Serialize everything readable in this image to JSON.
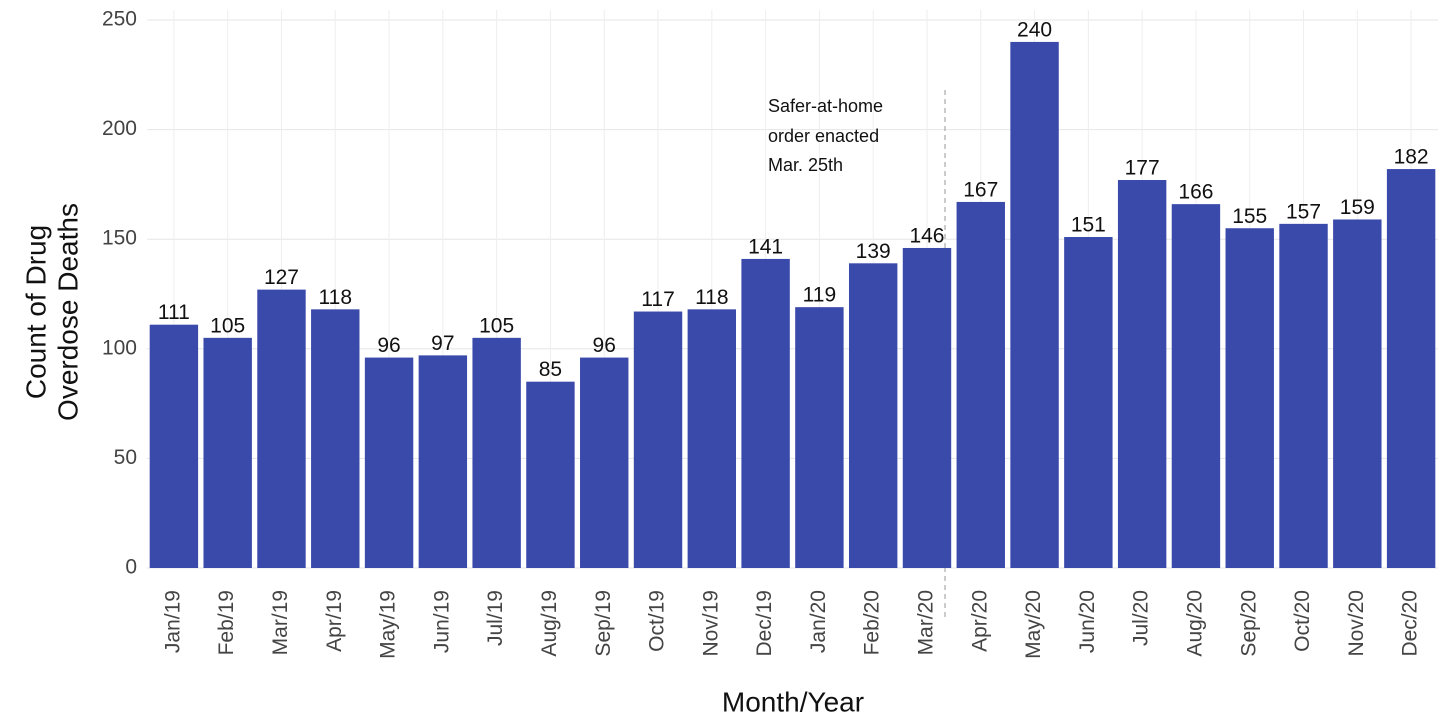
{
  "chart_data": {
    "type": "bar",
    "x_label": "Month/Year",
    "y_label": [
      "Count of Drug",
      "Overdose Deaths"
    ],
    "annotation": [
      "Safer-at-home",
      "order enacted",
      "Mar. 25th"
    ],
    "categories": [
      "Jan/19",
      "Feb/19",
      "Mar/19",
      "Apr/19",
      "May/19",
      "Jun/19",
      "Jul/19",
      "Aug/19",
      "Sep/19",
      "Oct/19",
      "Nov/19",
      "Dec/19",
      "Jan/20",
      "Feb/20",
      "Mar/20",
      "Apr/20",
      "May/20",
      "Jun/20",
      "Jul/20",
      "Aug/20",
      "Sep/20",
      "Oct/20",
      "Nov/20",
      "Dec/20"
    ],
    "values": [
      111,
      105,
      127,
      118,
      96,
      97,
      105,
      85,
      96,
      117,
      118,
      141,
      119,
      139,
      146,
      167,
      240,
      151,
      177,
      166,
      155,
      157,
      159,
      182
    ],
    "color": "#3a4aab",
    "ylim": [
      0,
      250
    ],
    "yticks": [
      0,
      50,
      100,
      150,
      200,
      250
    ],
    "grid": true
  }
}
